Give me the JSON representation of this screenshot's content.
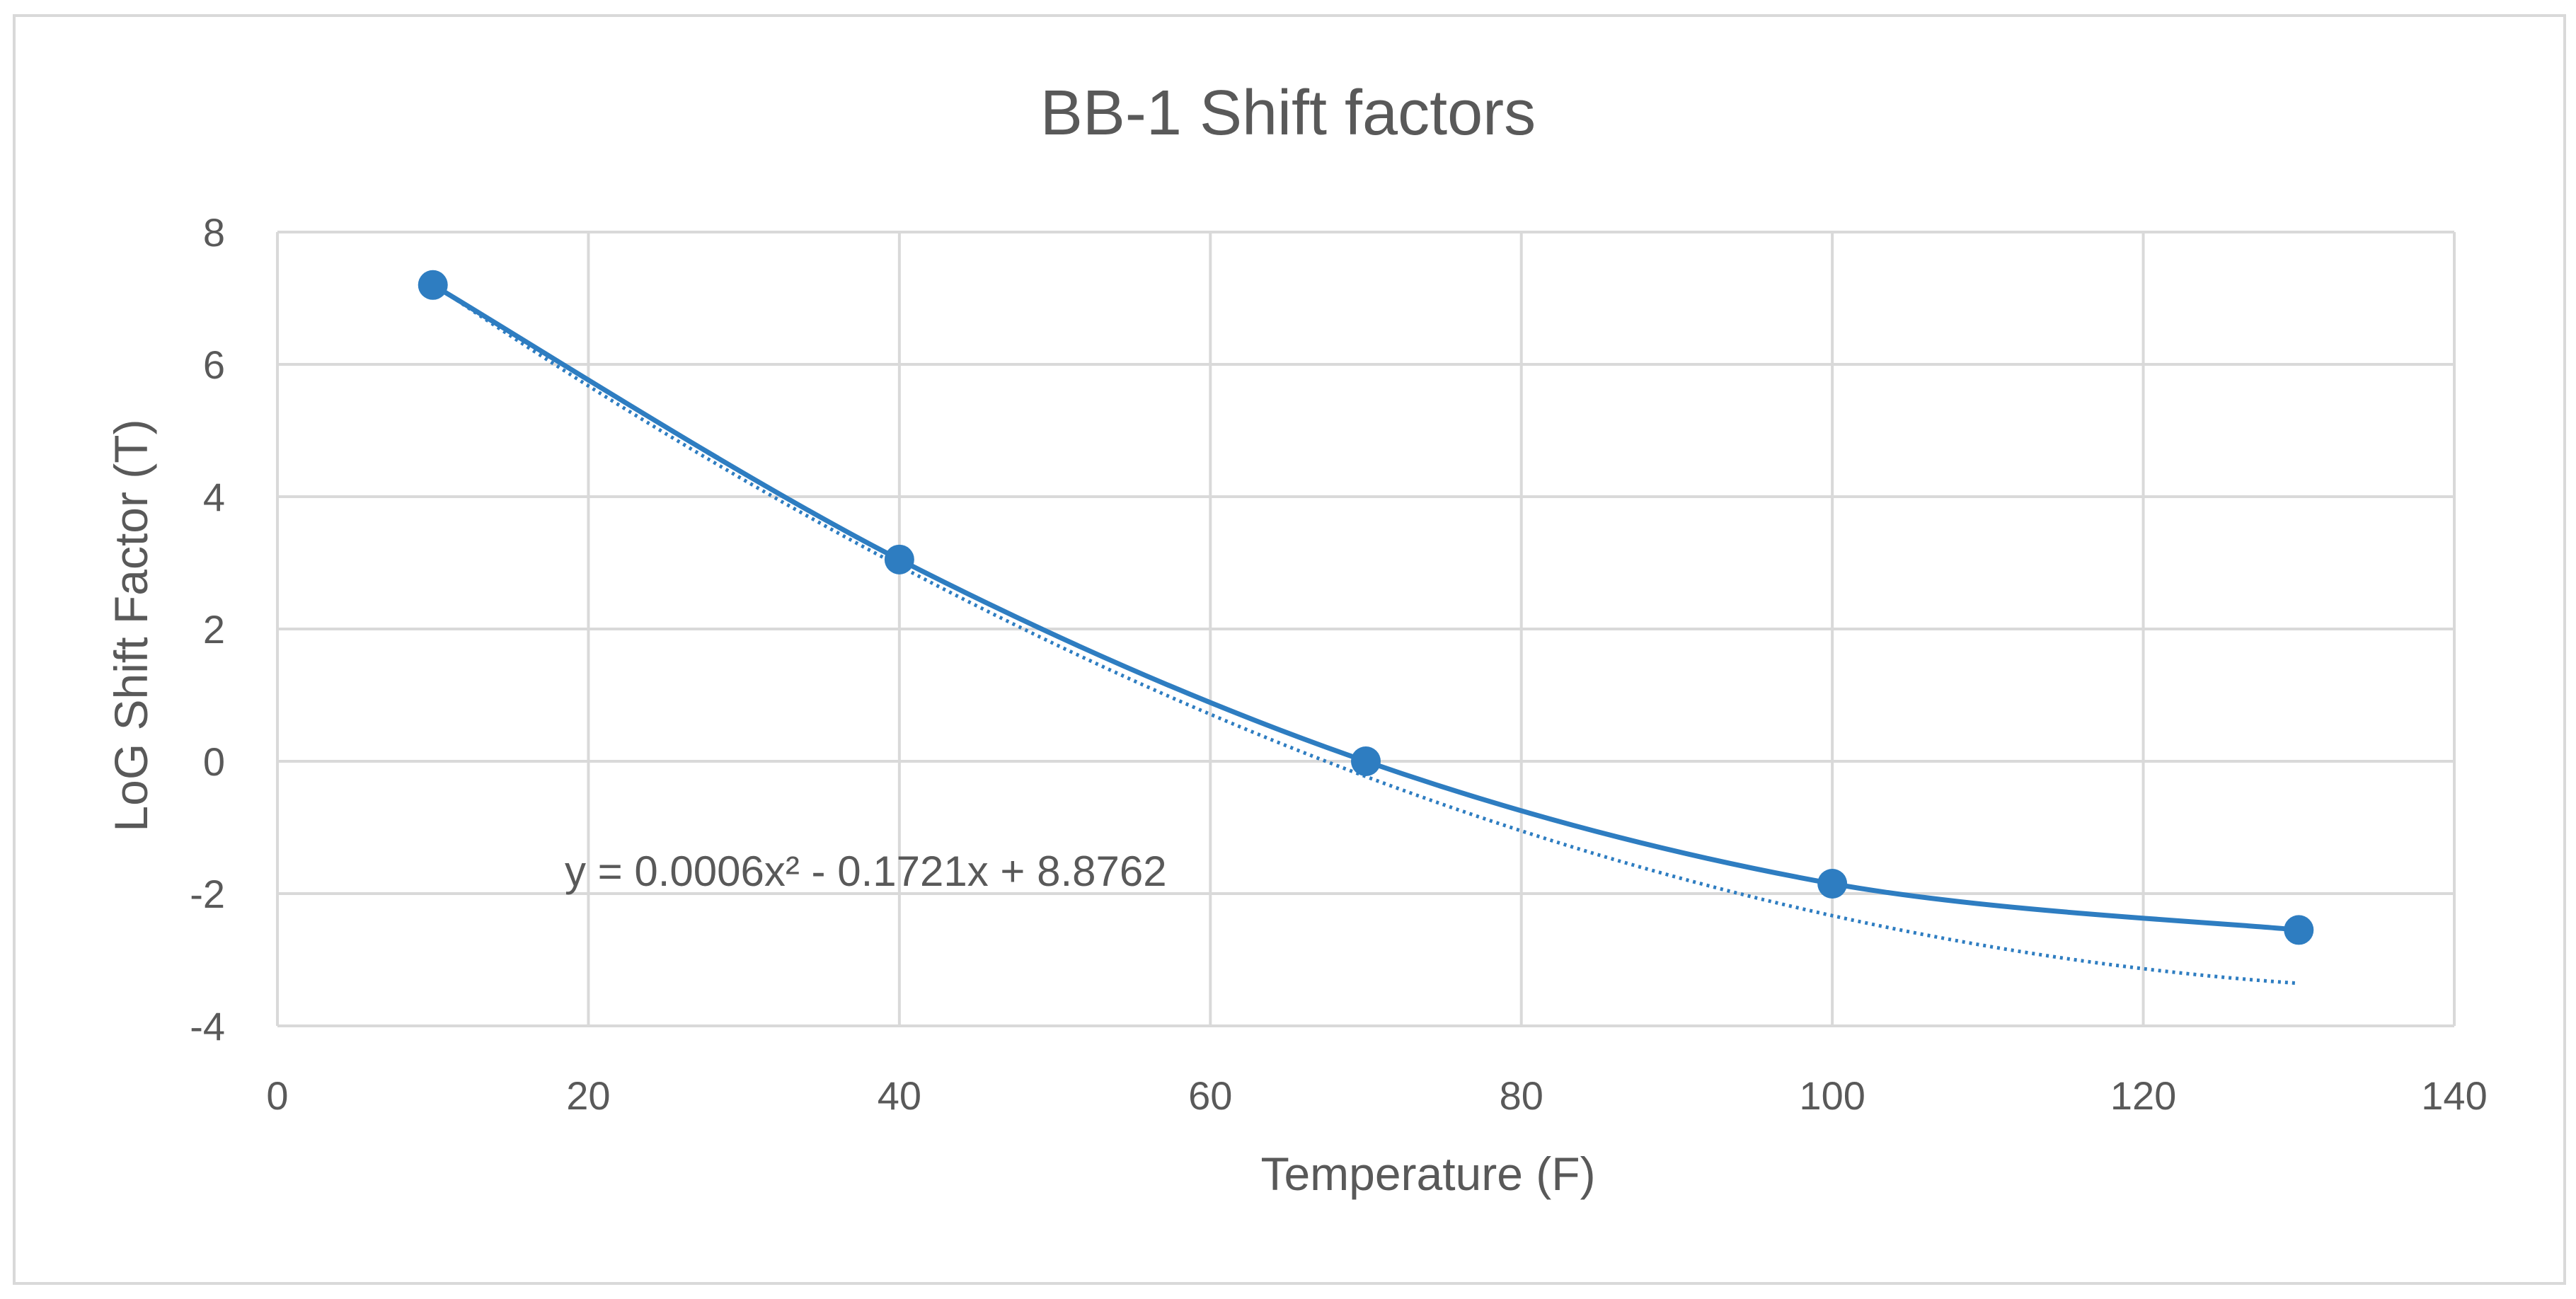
{
  "chart_data": {
    "type": "scatter",
    "title": "BB-1 Shift factors",
    "xlabel": "Temperature  (F)",
    "ylabel": "LoG Shift Factor (T)",
    "xlim": [
      0,
      140
    ],
    "ylim": [
      -4,
      8
    ],
    "x_ticks": [
      0,
      20,
      40,
      60,
      80,
      100,
      120,
      140
    ],
    "y_ticks": [
      -4,
      -2,
      0,
      2,
      4,
      6,
      8
    ],
    "x_tick_labels": [
      "0",
      "20",
      "40",
      "60",
      "80",
      "100",
      "120",
      "140"
    ],
    "y_tick_labels": [
      "-4",
      "-2",
      "0",
      "2",
      "4",
      "6",
      "8"
    ],
    "grid": true,
    "legend": "none",
    "series": [
      {
        "x": [
          10,
          40,
          70,
          100,
          130
        ],
        "y": [
          7.2,
          3.05,
          0,
          -1.85,
          -2.55
        ],
        "color": "#2e7dc1",
        "line": "smoothed",
        "markers": "circle"
      }
    ],
    "trendline": {
      "type": "polynomial",
      "order": 2,
      "coefficients": [
        0.0006,
        -0.1721,
        8.8762
      ],
      "style": "dotted",
      "color": "#2e7dc1",
      "equation_label": "y = 0.0006x² - 0.1721x + 8.8762"
    }
  }
}
